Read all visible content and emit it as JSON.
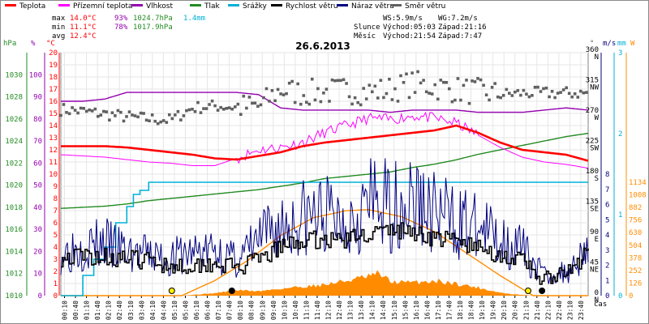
{
  "legend": [
    {
      "label": "Teplota",
      "color": "#ff0000"
    },
    {
      "label": "Přízemní teplota",
      "color": "#ff00ff"
    },
    {
      "label": "Vlhkost",
      "color": "#9400b0"
    },
    {
      "label": "Tlak",
      "color": "#228b22"
    },
    {
      "label": "Srážky",
      "color": "#00b0d8"
    },
    {
      "label": "Rychlost větru",
      "color": "#000000"
    },
    {
      "label": "Náraz větru",
      "color": "#000080"
    },
    {
      "label": "Směr větru",
      "color": "#606060"
    }
  ],
  "stats": {
    "max_label": "max",
    "max_temp": "14.0°C",
    "max_hum": "93%",
    "max_press": "1024.7hPa",
    "rain_total": "1.4mm",
    "min_label": "min",
    "min_temp": "11.1°C",
    "min_hum": "78%",
    "min_press": "1017.9hPa",
    "avg_label": "avg",
    "avg_temp": "12.4°C"
  },
  "wind_info": {
    "ws": "WS:5.9m/s",
    "wg": "WG:7.2m/s"
  },
  "sun_info": {
    "label": "Slunce",
    "rise": "Východ:05:03",
    "set": "Západ:21:16"
  },
  "moon_info": {
    "label": "Měsíc",
    "rise": "Východ:21:54",
    "set": "Západ:7:47"
  },
  "date": "26.6.2013",
  "axis_headers": {
    "hpa": "hPa",
    "pct": "%",
    "degc": "°C",
    "deg": "°",
    "ms": "m/s",
    "mm": "mm",
    "w": "W",
    "cas": "čas"
  },
  "colors": {
    "temperature": "#ff0000",
    "ground_temp": "#ff00ff",
    "humidity": "#9400b0",
    "pressure": "#228b22",
    "rain": "#00b0d8",
    "wind_speed": "#000000",
    "wind_gust": "#000080",
    "wind_dir": "#606060",
    "solar": "#ff8c00",
    "sun_elevation": "#ff8c00"
  },
  "chart_data": {
    "type": "line",
    "title": "26.6.2013",
    "x_ticks": [
      "00:10",
      "00:40",
      "01:10",
      "01:40",
      "02:10",
      "02:40",
      "03:10",
      "03:40",
      "04:10",
      "04:40",
      "05:10",
      "05:40",
      "06:10",
      "06:40",
      "07:10",
      "07:40",
      "08:10",
      "08:40",
      "09:10",
      "09:40",
      "10:10",
      "10:40",
      "11:10",
      "11:40",
      "12:10",
      "12:40",
      "13:10",
      "13:40",
      "14:10",
      "14:40",
      "15:10",
      "15:40",
      "16:10",
      "16:40",
      "17:10",
      "17:40",
      "18:10",
      "18:40",
      "19:10",
      "19:40",
      "20:10",
      "20:40",
      "21:10",
      "21:40",
      "22:10",
      "22:40",
      "23:10",
      "23:40"
    ],
    "axes": {
      "pressure_hpa": {
        "ticks": [
          1010,
          1012,
          1014,
          1016,
          1018,
          1020,
          1022,
          1024,
          1026,
          1028,
          1030
        ],
        "range": [
          1010,
          1032
        ]
      },
      "humidity_pct": {
        "ticks": [
          0,
          10,
          20,
          30,
          40,
          50,
          60,
          70,
          80,
          90,
          100
        ],
        "range": [
          0,
          110
        ]
      },
      "temperature_c": {
        "ticks": [
          0,
          1,
          2,
          3,
          4,
          5,
          6,
          7,
          8,
          9,
          10,
          11,
          12,
          13,
          14,
          15,
          16,
          17,
          18,
          19,
          20
        ],
        "range": [
          0,
          20
        ]
      },
      "wind_dir_deg": {
        "ticks": [
          "0 N",
          "45 NE",
          "90 E",
          "135 SE",
          "180 S",
          "225 SW",
          "270 W",
          "315 NW",
          "360 N"
        ],
        "range": [
          0,
          360
        ]
      },
      "wind_ms": {
        "ticks": [
          0,
          1,
          2,
          3,
          4,
          5,
          6,
          7,
          8
        ],
        "range": [
          0,
          8
        ]
      },
      "rain_mm": {
        "ticks": [
          0,
          1,
          2,
          3
        ],
        "range": [
          0,
          3
        ]
      },
      "solar_w": {
        "ticks": [
          0,
          126,
          252,
          378,
          504,
          630,
          756,
          882,
          1008,
          1134
        ],
        "range": [
          0,
          1134
        ]
      }
    },
    "series": [
      {
        "name": "Teplota",
        "unit": "°C",
        "axis": "temperature_c",
        "x": [
          0,
          1,
          2,
          3,
          4,
          5,
          6,
          7,
          8,
          9,
          10,
          11,
          12,
          13,
          14,
          15,
          16,
          17,
          18,
          19,
          20,
          21,
          22,
          23,
          24
        ],
        "values": [
          12.3,
          12.3,
          12.3,
          12.2,
          12.0,
          11.8,
          11.6,
          11.3,
          11.2,
          11.5,
          11.8,
          12.3,
          12.6,
          12.8,
          13.0,
          13.2,
          13.4,
          13.6,
          14.0,
          13.4,
          12.6,
          12.0,
          11.8,
          11.6,
          11.1
        ]
      },
      {
        "name": "Přízemní teplota",
        "unit": "°C",
        "axis": "temperature_c",
        "x": [
          0,
          1,
          2,
          3,
          4,
          5,
          6,
          7,
          8,
          9,
          10,
          11,
          12,
          13,
          14,
          15,
          16,
          17,
          18,
          19,
          20,
          21,
          22,
          23,
          24
        ],
        "values": [
          11.6,
          11.5,
          11.4,
          11.2,
          11.0,
          10.9,
          10.7,
          10.7,
          11.3,
          12.0,
          12.2,
          12.6,
          13.4,
          14.0,
          14.6,
          14.5,
          14.8,
          14.6,
          14.2,
          13.2,
          12.2,
          11.4,
          11.0,
          10.8,
          10.5
        ]
      },
      {
        "name": "Vlhkost",
        "unit": "%",
        "axis": "humidity_pct",
        "x": [
          0,
          1,
          2,
          3,
          4,
          5,
          6,
          7,
          8,
          9,
          10,
          11,
          12,
          13,
          14,
          15,
          16,
          17,
          18,
          19,
          20,
          21,
          22,
          23,
          24
        ],
        "values": [
          88,
          88,
          89,
          92,
          92,
          92,
          92,
          92,
          92,
          91,
          85,
          84,
          84,
          84,
          84,
          83,
          84,
          84,
          84,
          83,
          83,
          83,
          84,
          85,
          84
        ]
      },
      {
        "name": "Tlak",
        "unit": "hPa",
        "axis": "pressure_hpa",
        "x": [
          0,
          1,
          2,
          3,
          4,
          5,
          6,
          7,
          8,
          9,
          10,
          11,
          12,
          13,
          14,
          15,
          16,
          17,
          18,
          19,
          20,
          21,
          22,
          23,
          24
        ],
        "values": [
          1017.9,
          1018.0,
          1018.1,
          1018.3,
          1018.6,
          1018.8,
          1019.0,
          1019.2,
          1019.4,
          1019.6,
          1019.9,
          1020.2,
          1020.6,
          1020.8,
          1021.0,
          1021.2,
          1021.6,
          1021.9,
          1022.3,
          1022.8,
          1023.2,
          1023.6,
          1024.0,
          1024.4,
          1024.7
        ]
      },
      {
        "name": "Srážky",
        "unit": "mm",
        "axis": "rain_mm",
        "x": [
          0,
          0.75,
          1.0,
          1.5,
          2.0,
          2.5,
          3.0,
          3.3,
          3.6,
          4.0,
          24
        ],
        "values": [
          0,
          0,
          0.25,
          0.45,
          0.6,
          0.9,
          1.1,
          1.25,
          1.3,
          1.4,
          1.4
        ]
      },
      {
        "name": "Rychlost větru",
        "unit": "m/s",
        "axis": "wind_ms",
        "x": [
          0,
          1,
          2,
          3,
          4,
          5,
          6,
          7,
          8,
          9,
          10,
          11,
          12,
          13,
          14,
          15,
          16,
          17,
          18,
          19,
          20,
          21,
          22,
          23,
          24
        ],
        "values": [
          2.5,
          2.6,
          2.6,
          2.4,
          2.3,
          2.0,
          2.0,
          2.2,
          1.8,
          2.3,
          3.2,
          3.6,
          3.7,
          3.7,
          4.1,
          4.3,
          4.2,
          3.8,
          3.6,
          3.1,
          2.7,
          2.2,
          1.0,
          1.4,
          2.8
        ]
      },
      {
        "name": "Náraz větru",
        "unit": "m/s",
        "axis": "wind_ms",
        "x": [
          0,
          1,
          2,
          3,
          4,
          5,
          6,
          7,
          8,
          9,
          10,
          11,
          12,
          13,
          14,
          15,
          16,
          17,
          18,
          19,
          20,
          21,
          22,
          23,
          24
        ],
        "values": [
          3.0,
          3.5,
          3.6,
          3.0,
          2.8,
          2.6,
          3.0,
          3.1,
          2.4,
          3.8,
          4.8,
          5.4,
          5.6,
          5.4,
          6.4,
          6.2,
          6.6,
          5.8,
          5.2,
          4.6,
          4.0,
          3.2,
          1.4,
          1.6,
          3.6
        ]
      },
      {
        "name": "Směr větru",
        "unit": "°",
        "axis": "wind_dir_deg",
        "x": [
          0,
          1,
          2,
          3,
          4,
          5,
          6,
          7,
          8,
          9,
          10,
          11,
          12,
          13,
          14,
          15,
          16,
          17,
          18,
          19,
          20,
          21,
          22,
          23,
          24
        ],
        "values": [
          276,
          273,
          269,
          265,
          262,
          260,
          278,
          281,
          279,
          280,
          305,
          300,
          302,
          304,
          302,
          305,
          314,
          310,
          305,
          302,
          298,
          300,
          300,
          300,
          300
        ]
      },
      {
        "name": "Solar",
        "unit": "W",
        "axis": "solar_w",
        "x": [
          0,
          5.5,
          6.0,
          7.0,
          8.0,
          9.0,
          10.0,
          11.0,
          12.0,
          13.0,
          14.0,
          14.5,
          15.0,
          16.0,
          17.0,
          18.0,
          19.0,
          20.0,
          20.5,
          21.5,
          24
        ],
        "values": [
          0,
          0,
          8,
          25,
          55,
          45,
          70,
          90,
          110,
          150,
          190,
          220,
          140,
          130,
          150,
          120,
          80,
          30,
          15,
          0,
          0
        ]
      },
      {
        "name": "Sun elevation",
        "unit": "W",
        "axis": "solar_w",
        "x": [
          0,
          5.5,
          7,
          8.5,
          10,
          11.5,
          13,
          14,
          15.5,
          17,
          18.5,
          20,
          21.5,
          24
        ],
        "values": [
          0,
          0,
          150,
          350,
          600,
          780,
          850,
          860,
          790,
          640,
          420,
          200,
          0,
          0
        ]
      }
    ],
    "markers": [
      {
        "kind": "sun_rise",
        "time": "05:03"
      },
      {
        "kind": "sun_set",
        "time": "21:16"
      },
      {
        "kind": "moon_set",
        "time": "07:47"
      },
      {
        "kind": "moon_rise",
        "time": "21:54"
      }
    ]
  }
}
